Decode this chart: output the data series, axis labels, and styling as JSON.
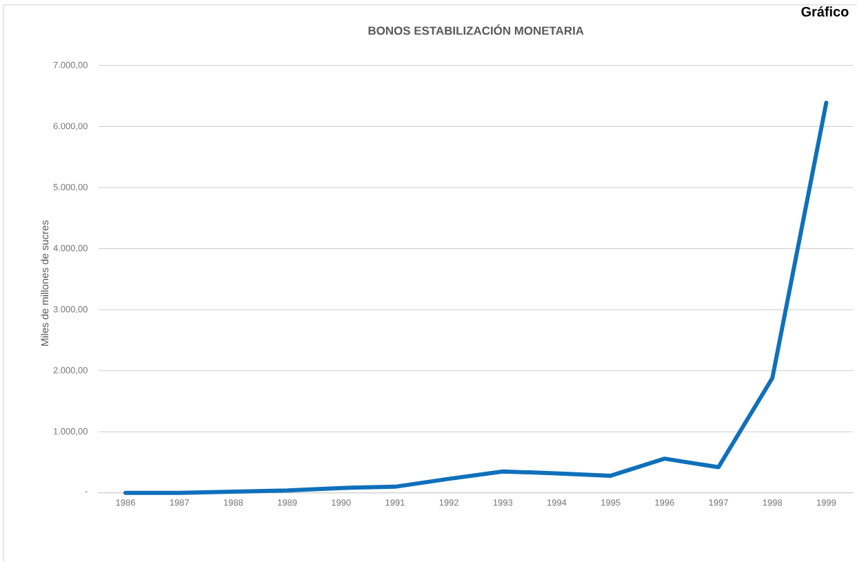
{
  "chart_data": {
    "type": "line",
    "title": "BONOS ESTABILIZACIÓN MONETARIA",
    "ylabel": "Miles de millones de sucres",
    "annotations": [
      "Gráfico"
    ],
    "categories": [
      "1986",
      "1987",
      "1988",
      "1989",
      "1990",
      "1991",
      "1992",
      "1993",
      "1994",
      "1995",
      "1996",
      "1997",
      "1998",
      "1999"
    ],
    "series": [
      {
        "color": "#0f70bb",
        "values": [
          0,
          0,
          20,
          40,
          80,
          100,
          230,
          350,
          320,
          280,
          560,
          420,
          1880,
          6390
        ]
      }
    ],
    "ylim": [
      0,
      7000
    ],
    "yticks": [
      {
        "value": 0,
        "label": "-"
      },
      {
        "value": 1000,
        "label": "1.000,00"
      },
      {
        "value": 2000,
        "label": "2.000,00"
      },
      {
        "value": 3000,
        "label": "3.000,00"
      },
      {
        "value": 4000,
        "label": "4.000,00"
      },
      {
        "value": 5000,
        "label": "5.000,00"
      },
      {
        "value": 6000,
        "label": "6.000,00"
      },
      {
        "value": 7000,
        "label": "7.000,00"
      }
    ],
    "grid": "y",
    "marker": "none",
    "line_style": "solid"
  }
}
